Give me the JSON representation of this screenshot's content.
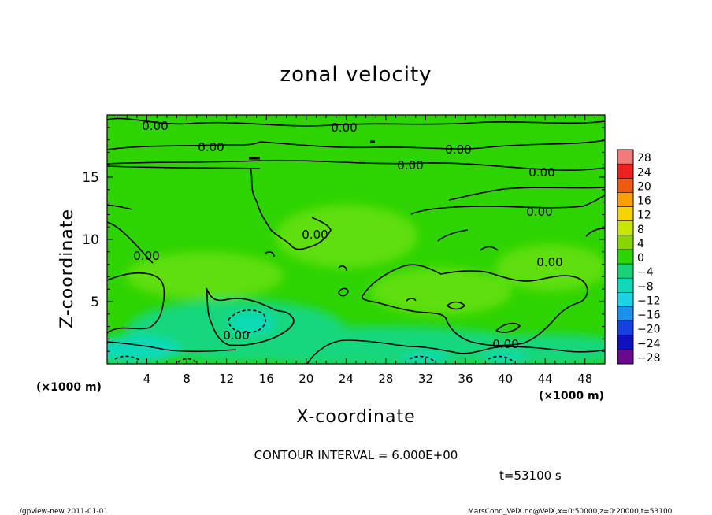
{
  "chart_data": {
    "type": "heatmap",
    "title": "zonal velocity",
    "xlabel": "X-coordinate",
    "ylabel": "Z-coordinate",
    "x_unit_left": "(×1000 m)",
    "x_unit_right": "(×1000 m)",
    "xlim": [
      0,
      50
    ],
    "ylim": [
      0,
      20
    ],
    "xticks": [
      "4",
      "8",
      "12",
      "16",
      "20",
      "24",
      "28",
      "32",
      "36",
      "40",
      "44",
      "48"
    ],
    "yticks": [
      "5",
      "10",
      "15"
    ],
    "contour_labels": [
      "0.00",
      "0.00",
      "0.00",
      "0.00",
      "0.00",
      "0.00",
      "0.00",
      "0.00",
      "0.00",
      "0.00",
      "0.00",
      "0.00"
    ],
    "contour_interval_text": "CONTOUR INTERVAL = 6.000E+00",
    "time_text": "t=53100 s",
    "colorbar": {
      "levels": [
        "28",
        "24",
        "20",
        "16",
        "12",
        "8",
        "4",
        "0",
        "−4",
        "−8",
        "−12",
        "−16",
        "−20",
        "−24",
        "−28"
      ],
      "colors": [
        "#f27a7a",
        "#ee2020",
        "#f05a10",
        "#f7a000",
        "#f5d400",
        "#c8e600",
        "#8ad400",
        "#2ed400",
        "#17d278",
        "#10d8b8",
        "#18d4e6",
        "#1c90ea",
        "#1640e0",
        "#1010c0",
        "#6a0890"
      ]
    },
    "field_colors": {
      "base": "#2ed400",
      "light": "#5fdf10",
      "cool": "#18d77c",
      "cold": "#10dab8"
    }
  },
  "footer": {
    "left": "./gpview-new   2011-01-01",
    "right": "MarsCond_VelX.nc@VelX,x=0:50000,z=0:20000,t=53100"
  }
}
